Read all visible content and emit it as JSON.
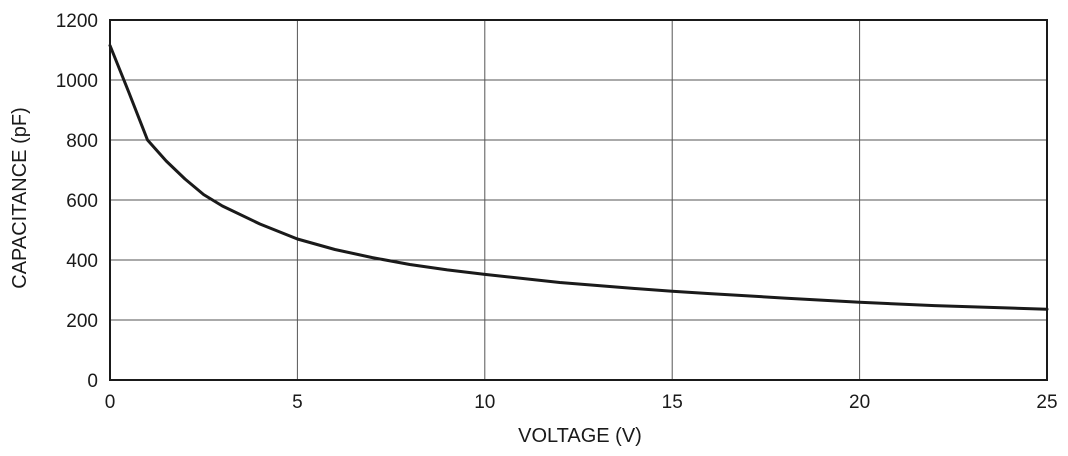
{
  "chart_data": {
    "type": "line",
    "title": "",
    "xlabel": "VOLTAGE (V)",
    "ylabel": "CAPACITANCE (pF)",
    "xlim": [
      0,
      25
    ],
    "ylim": [
      0,
      1200
    ],
    "xticks": [
      0,
      5,
      10,
      15,
      20,
      25
    ],
    "yticks": [
      0,
      200,
      400,
      600,
      800,
      1000,
      1200
    ],
    "xtick_labels": [
      "0",
      "5",
      "10",
      "15",
      "20",
      "25"
    ],
    "ytick_labels": [
      "0",
      "200",
      "400",
      "600",
      "800",
      "1000",
      "1200"
    ],
    "grid": true,
    "legend": "none",
    "series": [
      {
        "color": "#1a1a1a",
        "x": [
          0,
          0.5,
          1,
          1.5,
          2,
          2.5,
          3,
          4,
          5,
          6,
          7,
          8,
          9,
          10,
          12,
          14,
          15,
          16,
          18,
          20,
          22,
          24,
          25
        ],
        "y": [
          1115,
          960,
          800,
          730,
          670,
          618,
          580,
          520,
          470,
          435,
          408,
          385,
          367,
          352,
          325,
          305,
          296,
          288,
          273,
          259,
          248,
          240,
          236
        ]
      }
    ]
  }
}
